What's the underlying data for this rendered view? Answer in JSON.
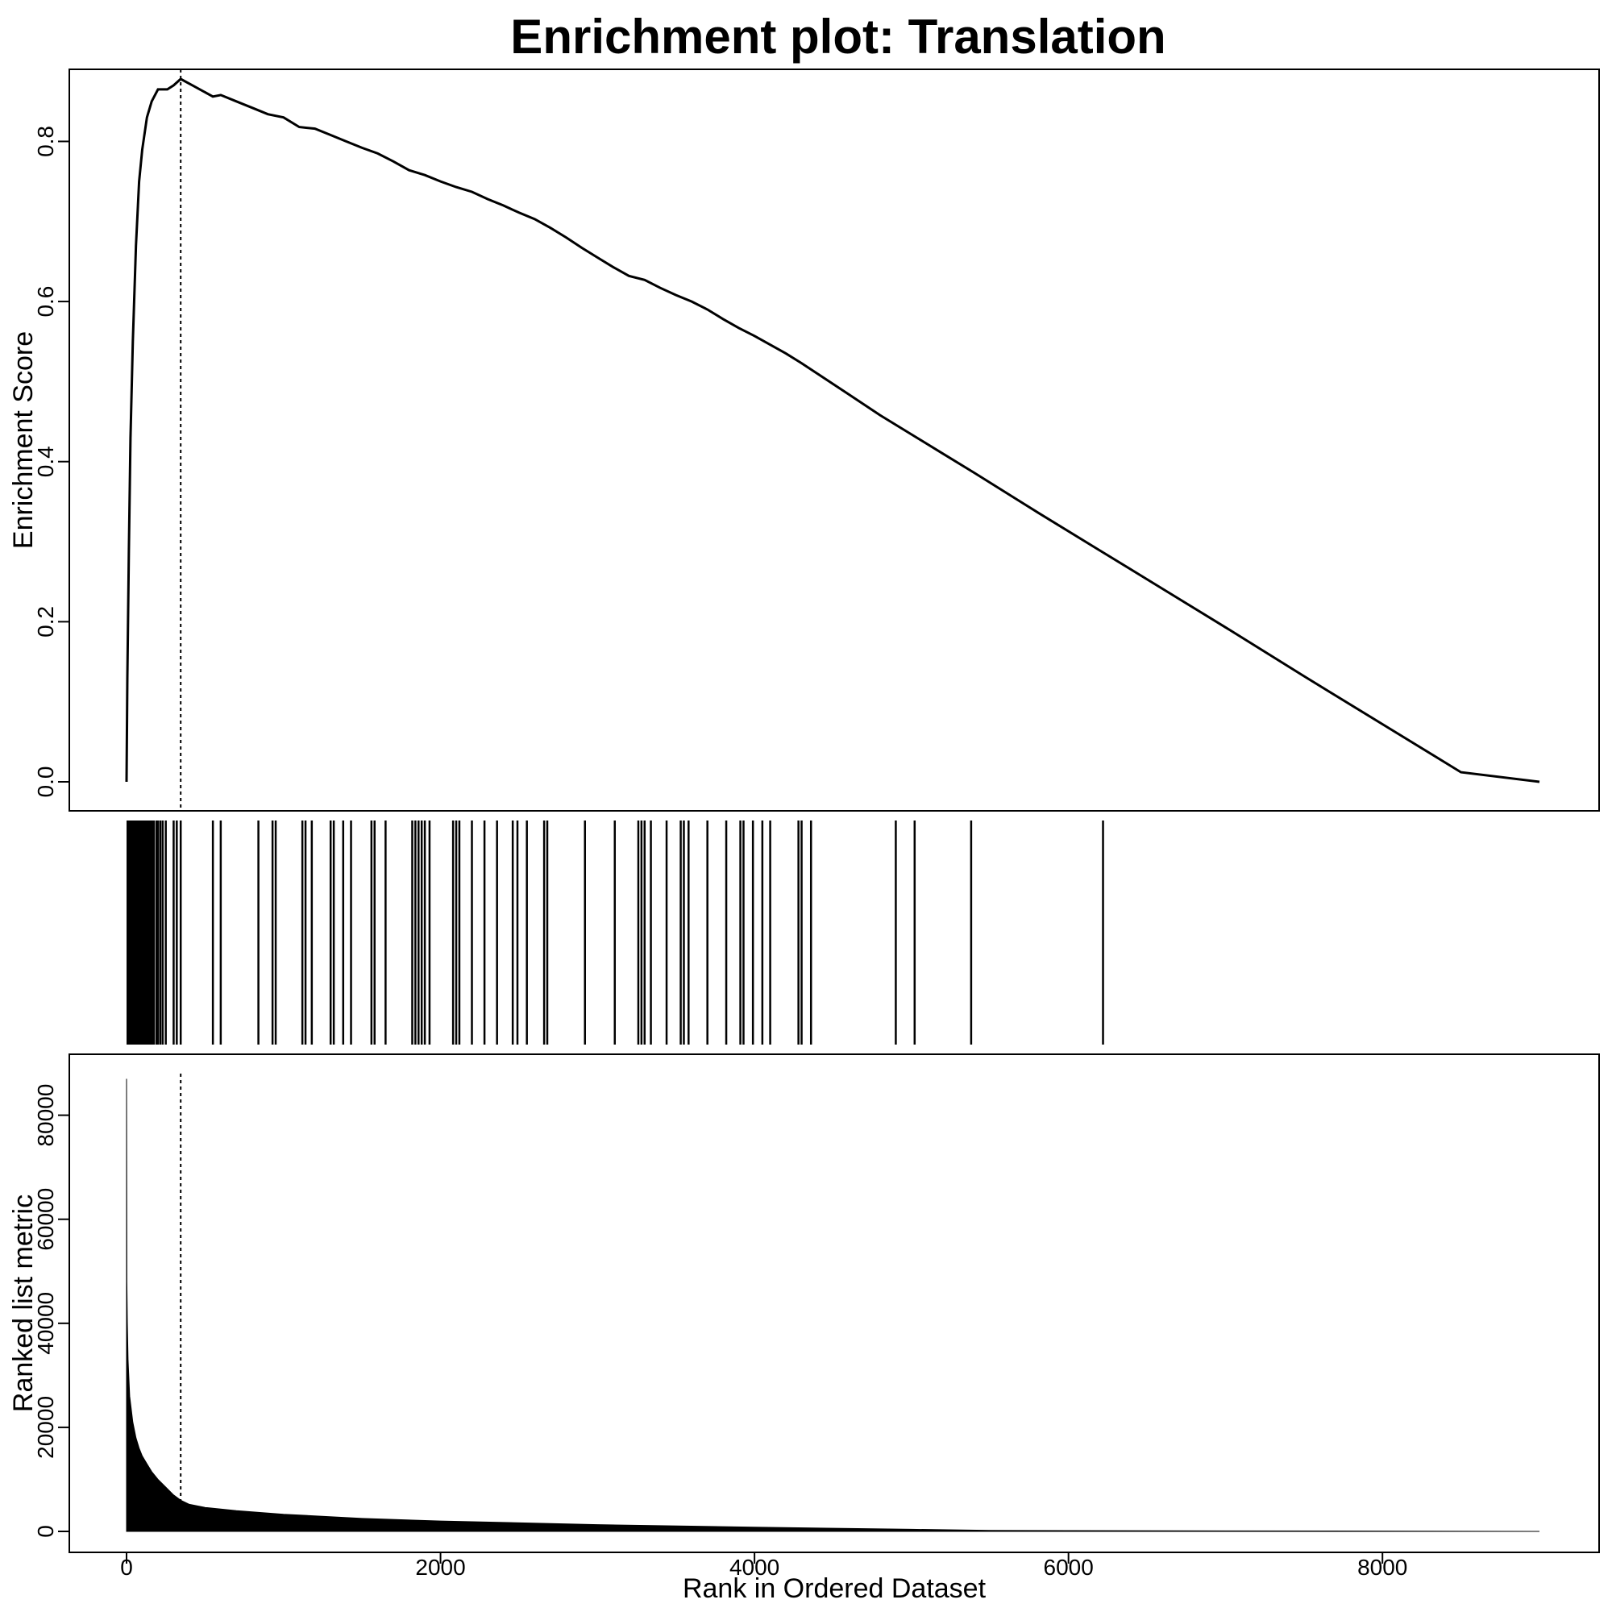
{
  "chart_data": {
    "title": "Enrichment plot: Translation",
    "xlabel": "Rank in Ordered Dataset",
    "x_range": [
      0,
      9000
    ],
    "x_ticks": [
      0,
      2000,
      4000,
      6000,
      8000
    ],
    "leading_edge_rank": 345,
    "panels": [
      {
        "name": "enrichment-score",
        "type": "line",
        "ylabel": "Enrichment Score",
        "ylim": [
          0,
          0.88
        ],
        "y_ticks": [
          0.0,
          0.2,
          0.4,
          0.6,
          0.8
        ],
        "y_tick_labels": [
          "0.0",
          "0.2",
          "0.4",
          "0.6",
          "0.8"
        ],
        "points": [
          [
            0,
            0.0
          ],
          [
            5,
            0.13
          ],
          [
            15,
            0.29
          ],
          [
            25,
            0.43
          ],
          [
            40,
            0.55
          ],
          [
            60,
            0.67
          ],
          [
            80,
            0.75
          ],
          [
            100,
            0.79
          ],
          [
            130,
            0.83
          ],
          [
            160,
            0.85
          ],
          [
            200,
            0.865
          ],
          [
            260,
            0.865
          ],
          [
            300,
            0.87
          ],
          [
            345,
            0.878
          ],
          [
            420,
            0.87
          ],
          [
            550,
            0.856
          ],
          [
            600,
            0.858
          ],
          [
            700,
            0.85
          ],
          [
            800,
            0.842
          ],
          [
            900,
            0.834
          ],
          [
            1000,
            0.83
          ],
          [
            1100,
            0.818
          ],
          [
            1200,
            0.816
          ],
          [
            1300,
            0.808
          ],
          [
            1400,
            0.8
          ],
          [
            1500,
            0.792
          ],
          [
            1600,
            0.785
          ],
          [
            1700,
            0.775
          ],
          [
            1800,
            0.764
          ],
          [
            1900,
            0.758
          ],
          [
            2000,
            0.75
          ],
          [
            2100,
            0.743
          ],
          [
            2200,
            0.737
          ],
          [
            2300,
            0.728
          ],
          [
            2400,
            0.72
          ],
          [
            2500,
            0.711
          ],
          [
            2600,
            0.703
          ],
          [
            2700,
            0.692
          ],
          [
            2800,
            0.68
          ],
          [
            2900,
            0.667
          ],
          [
            3000,
            0.655
          ],
          [
            3100,
            0.643
          ],
          [
            3200,
            0.632
          ],
          [
            3300,
            0.627
          ],
          [
            3400,
            0.617
          ],
          [
            3500,
            0.608
          ],
          [
            3600,
            0.6
          ],
          [
            3700,
            0.59
          ],
          [
            3800,
            0.578
          ],
          [
            3900,
            0.567
          ],
          [
            4000,
            0.557
          ],
          [
            4100,
            0.546
          ],
          [
            4200,
            0.535
          ],
          [
            4300,
            0.523
          ],
          [
            4400,
            0.51
          ],
          [
            4600,
            0.484
          ],
          [
            4800,
            0.458
          ],
          [
            5000,
            0.434
          ],
          [
            5200,
            0.41
          ],
          [
            5400,
            0.386
          ],
          [
            5800,
            0.337
          ],
          [
            6200,
            0.289
          ],
          [
            6600,
            0.241
          ],
          [
            7000,
            0.193
          ],
          [
            7500,
            0.132
          ],
          [
            8000,
            0.072
          ],
          [
            8500,
            0.012
          ],
          [
            9000,
            0.0
          ]
        ]
      },
      {
        "name": "hit-ticks",
        "type": "barcode",
        "dense_region": [
          0,
          180
        ],
        "hits": [
          190,
          200,
          215,
          230,
          250,
          300,
          320,
          345,
          550,
          600,
          840,
          930,
          950,
          1120,
          1140,
          1180,
          1300,
          1320,
          1380,
          1430,
          1560,
          1580,
          1650,
          1820,
          1840,
          1860,
          1880,
          1900,
          1930,
          2080,
          2100,
          2120,
          2200,
          2280,
          2360,
          2460,
          2490,
          2550,
          2660,
          2680,
          2920,
          3110,
          3260,
          3280,
          3300,
          3340,
          3440,
          3530,
          3550,
          3580,
          3700,
          3820,
          3910,
          3930,
          3990,
          4050,
          4100,
          4280,
          4300,
          4360,
          4900,
          5020,
          5380,
          6220
        ]
      },
      {
        "name": "ranked-metric",
        "type": "area",
        "ylabel": "Ranked list metric",
        "ylim": [
          0,
          88000
        ],
        "y_ticks": [
          0,
          20000,
          40000,
          60000,
          80000
        ],
        "y_tick_labels": [
          "0",
          "20000",
          "40000",
          "60000",
          "80000"
        ],
        "points": [
          [
            0,
            87000
          ],
          [
            2,
            48000
          ],
          [
            5,
            40000
          ],
          [
            10,
            33000
          ],
          [
            20,
            26000
          ],
          [
            40,
            21000
          ],
          [
            60,
            18000
          ],
          [
            80,
            16000
          ],
          [
            100,
            14500
          ],
          [
            130,
            13000
          ],
          [
            160,
            11500
          ],
          [
            200,
            10000
          ],
          [
            250,
            8500
          ],
          [
            300,
            7000
          ],
          [
            345,
            6000
          ],
          [
            400,
            5200
          ],
          [
            500,
            4600
          ],
          [
            700,
            4000
          ],
          [
            1000,
            3300
          ],
          [
            1500,
            2500
          ],
          [
            2000,
            2000
          ],
          [
            3000,
            1300
          ],
          [
            4000,
            800
          ],
          [
            5000,
            400
          ],
          [
            5500,
            200
          ],
          [
            6000,
            150
          ],
          [
            7000,
            100
          ],
          [
            8000,
            60
          ],
          [
            9000,
            0
          ]
        ]
      }
    ]
  }
}
